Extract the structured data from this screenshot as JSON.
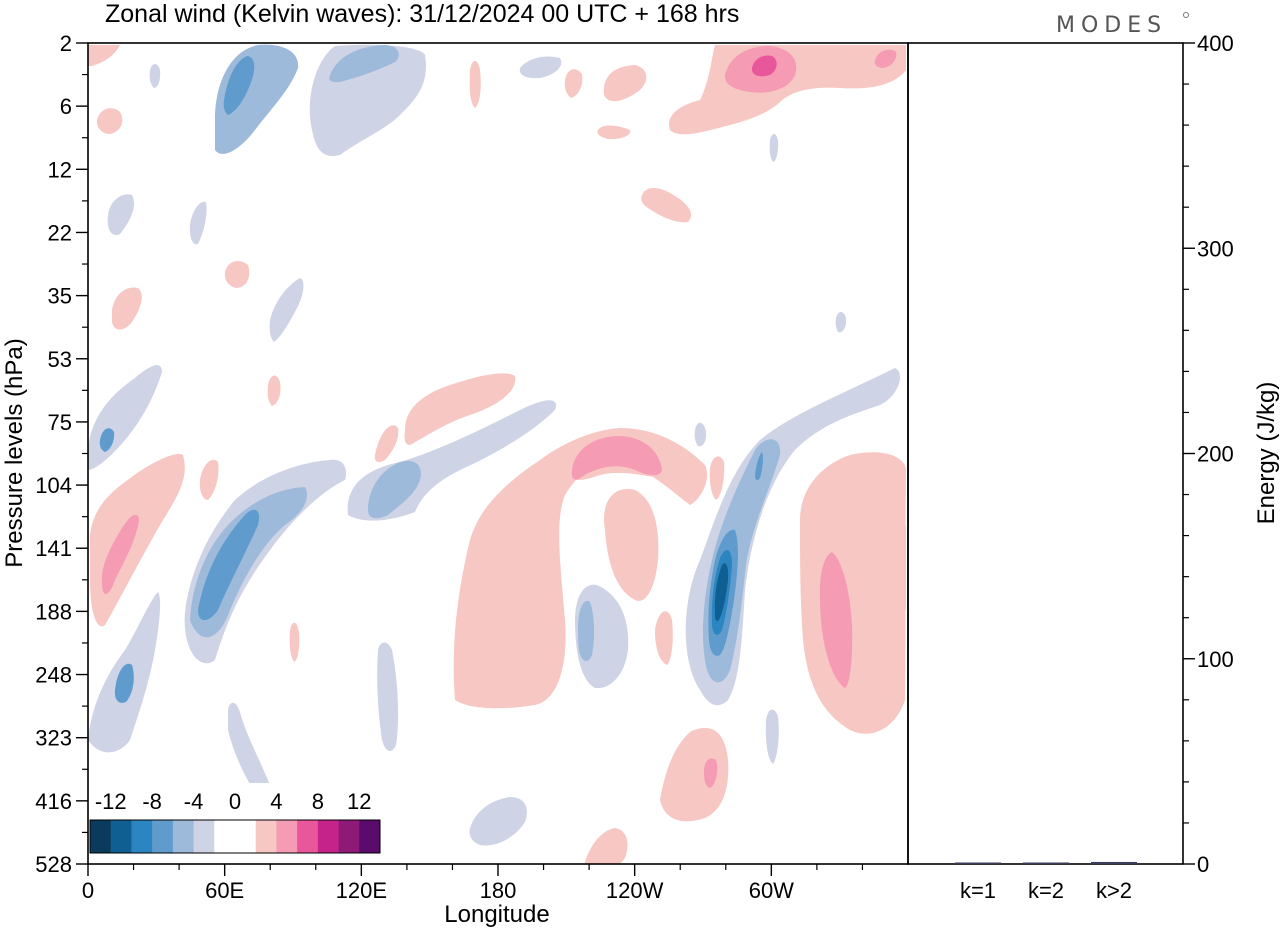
{
  "title": "Zonal wind (Kelvin waves):  31/12/2024  00 UTC  + 168 hrs",
  "brand": "MODES",
  "chart_data": [
    {
      "type": "heatmap",
      "name": "hovmoller",
      "xlabel": "Longitude",
      "ylabel": "Pressure levels (hPa)",
      "x_ticks": [
        "0",
        "60E",
        "120E",
        "180",
        "120W",
        "60W"
      ],
      "x_tick_lon": [
        0,
        60,
        120,
        180,
        240,
        300
      ],
      "xlim": [
        0,
        360
      ],
      "y_ticks": [
        "2",
        "6",
        "12",
        "22",
        "35",
        "53",
        "75",
        "104",
        "141",
        "188",
        "248",
        "323",
        "416",
        "528"
      ],
      "colorbar": {
        "labels": [
          "-12",
          "-8",
          "-4",
          "0",
          "4",
          "8",
          "12"
        ],
        "colors": [
          "#0b3a5c",
          "#0f5f93",
          "#2a85c0",
          "#5f9ccd",
          "#9ebadb",
          "#cfd3e6",
          "#ffffff",
          "#ffffff",
          "#f7c7c3",
          "#f59bb4",
          "#e9579b",
          "#c5238a",
          "#8e1a78",
          "#5a0b6b"
        ]
      },
      "regions": [
        {
          "id": "A",
          "lon": 12,
          "level": "141",
          "value": 5,
          "color": "#f7c7c3"
        },
        {
          "id": "B",
          "lon": 16,
          "level": "141",
          "value": 7,
          "color": "#f59bb4"
        },
        {
          "id": "C",
          "lon": 62,
          "level": "141",
          "value": -3,
          "color": "#cfd3e6"
        },
        {
          "id": "D",
          "lon": 64,
          "level": "141",
          "value": -6,
          "color": "#9ebadb"
        },
        {
          "id": "E",
          "lon": 66,
          "level": "141",
          "value": -8,
          "color": "#5f9ccd"
        },
        {
          "id": "F",
          "lon": 62,
          "level": "6",
          "value": -6,
          "color": "#9ebadb"
        },
        {
          "id": "G",
          "lon": 64,
          "level": "6",
          "value": -8,
          "color": "#5f9ccd"
        },
        {
          "id": "H",
          "lon": 108,
          "level": "6",
          "value": -3,
          "color": "#cfd3e6"
        },
        {
          "id": "I",
          "lon": 116,
          "level": "6",
          "value": -5,
          "color": "#9ebadb"
        },
        {
          "id": "J",
          "lon": 150,
          "level": "104",
          "value": -3,
          "color": "#cfd3e6"
        },
        {
          "id": "K",
          "lon": 130,
          "level": "104",
          "value": -6,
          "color": "#9ebadb"
        },
        {
          "id": "L",
          "lon": 290,
          "level": "104",
          "value": -4,
          "color": "#cfd3e6"
        },
        {
          "id": "M",
          "lon": 282,
          "level": "141",
          "value": -7,
          "color": "#9ebadb"
        },
        {
          "id": "N",
          "lon": 278,
          "level": "188",
          "value": -9,
          "color": "#5f9ccd"
        },
        {
          "id": "O",
          "lon": 277,
          "level": "188",
          "value": -11,
          "color": "#2a85c0"
        },
        {
          "id": "P",
          "lon": 276,
          "level": "188",
          "value": -13,
          "color": "#0f5f93"
        },
        {
          "id": "Q",
          "lon": 215,
          "level": "188",
          "value": 4,
          "color": "#f7c7c3"
        },
        {
          "id": "R",
          "lon": 236,
          "level": "104",
          "value": 5,
          "color": "#f7c7c3"
        },
        {
          "id": "S",
          "lon": 237,
          "level": "104",
          "value": 7,
          "color": "#f59bb4"
        },
        {
          "id": "T",
          "lon": 330,
          "level": "188",
          "value": 5,
          "color": "#f7c7c3"
        },
        {
          "id": "U",
          "lon": 330,
          "level": "188",
          "value": 7,
          "color": "#f59bb4"
        },
        {
          "id": "V",
          "lon": 285,
          "level": "2",
          "value": 4,
          "color": "#f7c7c3"
        },
        {
          "id": "W",
          "lon": 294,
          "level": "2",
          "value": 7,
          "color": "#f59bb4"
        },
        {
          "id": "X",
          "lon": 297,
          "level": "2",
          "value": 9,
          "color": "#e9579b"
        },
        {
          "id": "Y",
          "lon": 138,
          "level": "75",
          "value": 4,
          "color": "#f7c7c3"
        },
        {
          "id": "Z",
          "lon": 258,
          "level": "416",
          "value": 5,
          "color": "#f7c7c3"
        },
        {
          "id": "AA",
          "lon": 220,
          "level": "188",
          "value": -3,
          "color": "#cfd3e6"
        },
        {
          "id": "AB",
          "lon": 220,
          "level": "188",
          "value": -6,
          "color": "#9ebadb"
        },
        {
          "id": "AC",
          "lon": 35,
          "level": "248",
          "value": -3,
          "color": "#cfd3e6"
        },
        {
          "id": "AD",
          "lon": 35,
          "level": "75",
          "value": -3,
          "color": "#cfd3e6"
        },
        {
          "id": "AE",
          "lon": 150,
          "level": "416",
          "value": -3,
          "color": "#cfd3e6"
        },
        {
          "id": "AF",
          "lon": 244,
          "level": "141",
          "value": 4,
          "color": "#f7c7c3"
        }
      ]
    },
    {
      "type": "bar",
      "name": "energy",
      "ylabel": "Energy (J/kg)",
      "categories": [
        "k=1",
        "k=2",
        "k>2"
      ],
      "values": [
        0.3,
        0.3,
        1.0
      ],
      "ylim": [
        0,
        400
      ],
      "y_ticks": [
        "0",
        "100",
        "200",
        "300",
        "400"
      ]
    }
  ]
}
